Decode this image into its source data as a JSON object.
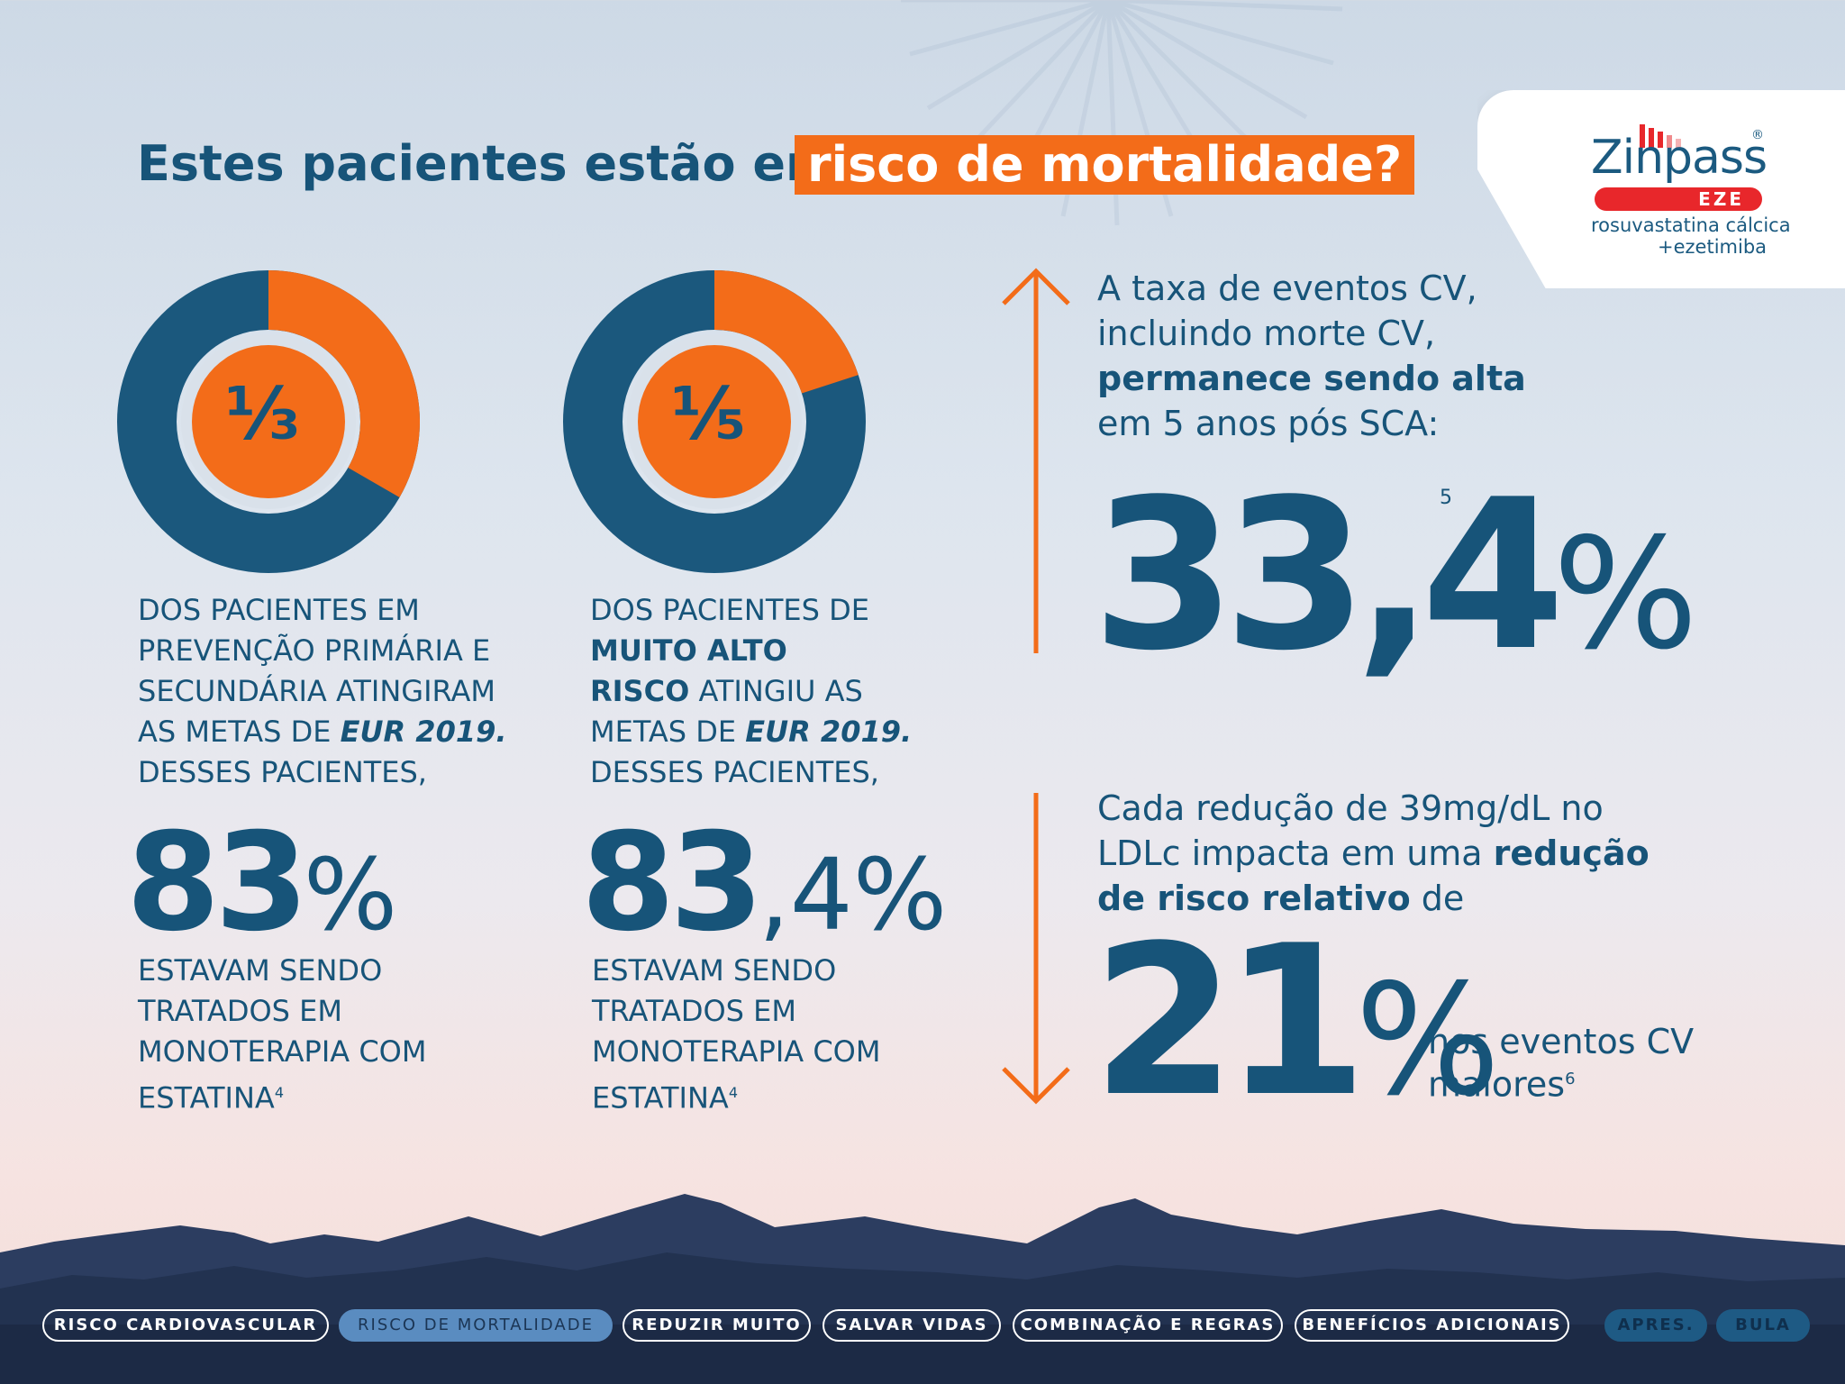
{
  "header": {
    "title_prefix": "Estes pacientes estão em",
    "title_highlight": "risco de mortalidade?"
  },
  "logo": {
    "brand": "Zinpass",
    "registered": "®",
    "variant": "EZE",
    "subtitle_line1": "rosuvastatina cálcica",
    "subtitle_line2": "+ezetimiba"
  },
  "stat1": {
    "fraction": "⅓",
    "donut_fraction": 0.3333,
    "text_lines": [
      "DOS PACIENTES EM",
      "PREVENÇÃO PRIMÁRIA E",
      "SECUNDÁRIA ATINGIRAM"
    ],
    "text_line4_prefix": "AS METAS DE ",
    "text_line4_em": "EUR 2019.",
    "text_line5": "DESSES PACIENTES,",
    "big_value": "83",
    "big_unit": "%",
    "after_lines": [
      "ESTAVAM SENDO",
      "TRATADOS EM",
      "MONOTERAPIA COM"
    ],
    "after_last": "ESTATINA",
    "ref": "4"
  },
  "stat2": {
    "fraction": "⅕",
    "donut_fraction": 0.2,
    "line1": "DOS PACIENTES DE",
    "line2_bold": "MUITO ALTO",
    "line3_bold": "RISCO",
    "line3_rest": " ATINGIU AS",
    "line4_prefix": "METAS DE ",
    "line4_em": "EUR 2019.",
    "line5": "DESSES PACIENTES,",
    "big_value": "83",
    "big_unit": ",4%",
    "after_lines": [
      "ESTAVAM SENDO",
      "TRATADOS EM",
      "MONOTERAPIA COM"
    ],
    "after_last": "ESTATINA",
    "ref": "4"
  },
  "right_top": {
    "line1": "A taxa de eventos CV,",
    "line2": "incluindo morte CV,",
    "line3_bold": "permanece sendo alta",
    "line4": "em 5 anos pós SCA:",
    "value": "33,4",
    "unit": "%",
    "ref": "5"
  },
  "right_bottom": {
    "line1": "Cada redução de 39mg/dL no",
    "line2_prefix": "LDLc impacta em uma ",
    "line2_bold": "redução",
    "line3_bold": "de risco relativo",
    "line3_rest": " de",
    "value": "21",
    "unit": "%",
    "trail1": "nos eventos CV",
    "trail2": "maiores",
    "ref": "6"
  },
  "nav": {
    "items": [
      "RISCO CARDIOVASCULAR",
      "RISCO DE MORTALIDADE",
      "REDUZIR MUITO",
      "SALVAR VIDAS",
      "COMBINAÇÃO E REGRAS",
      "BENEFÍCIOS ADICIONAIS"
    ],
    "apres": "APRES.",
    "bula": "BULA"
  },
  "colors": {
    "primary": "#175479",
    "accent": "#f36c19",
    "ring": "#1b587d",
    "inner_ring": "#d9e1ea"
  }
}
